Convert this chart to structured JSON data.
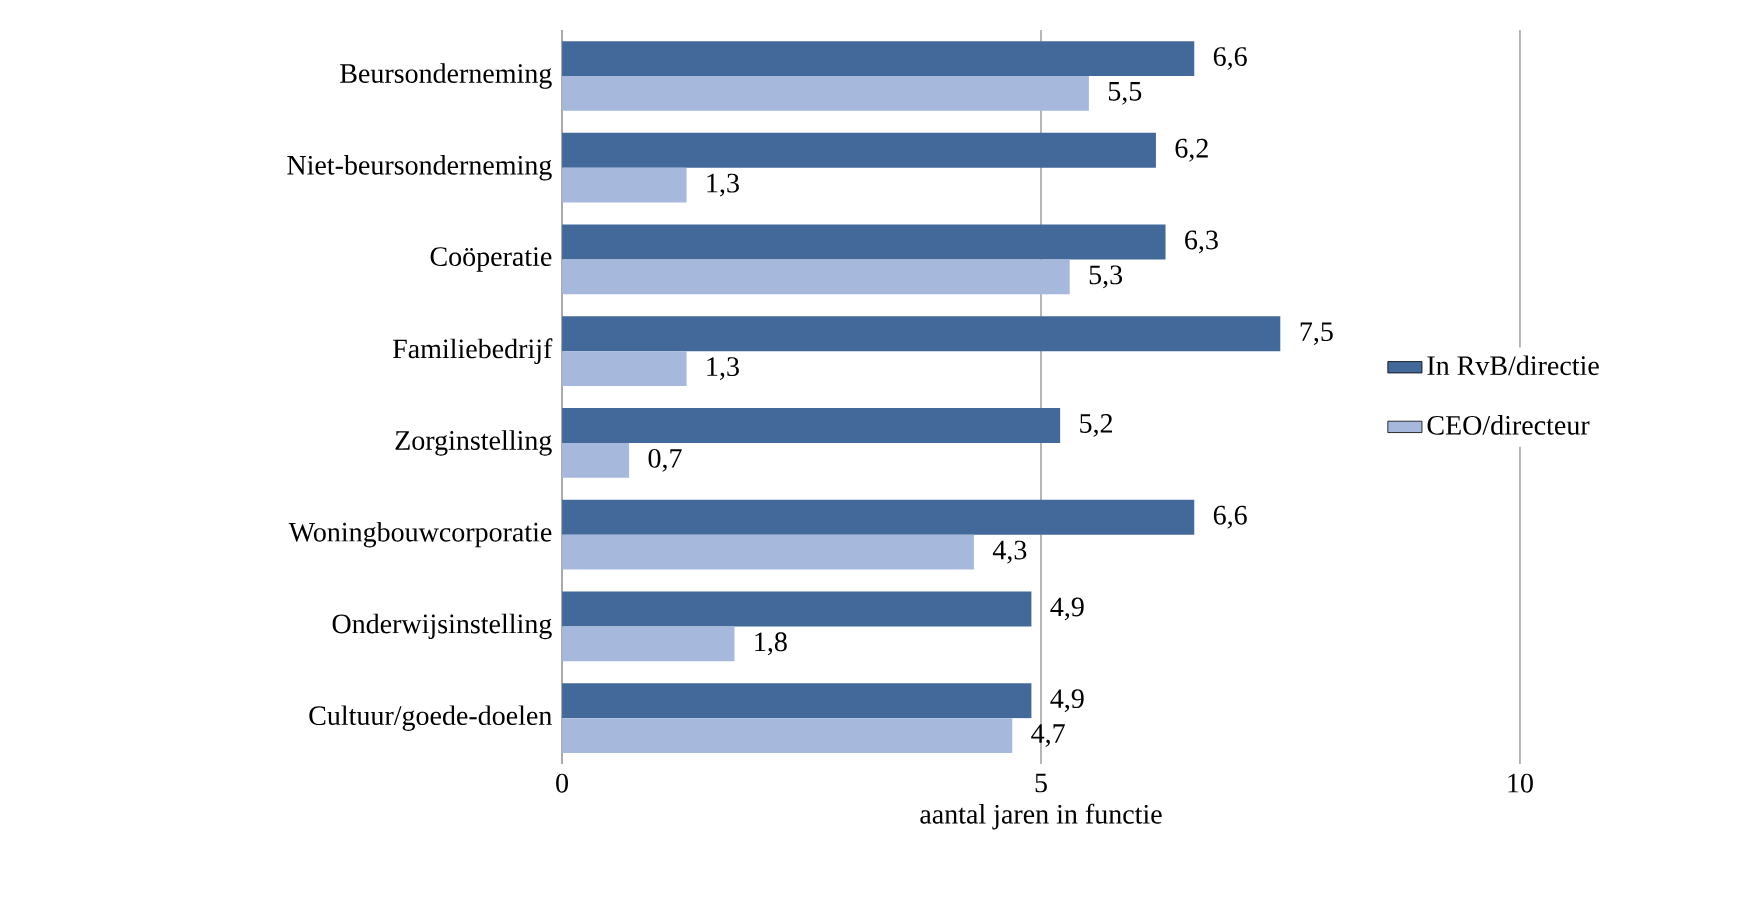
{
  "chart_data": {
    "type": "bar",
    "orientation": "horizontal",
    "xlabel": "aantal jaren in functie",
    "categories": [
      "Beursonderneming",
      "Niet-beursonderneming",
      "Coöperatie",
      "Familiebedrijf",
      "Zorginstelling",
      "Woningbouwcorporatie",
      "Onderwijsinstelling",
      "Cultuur/goede-doelen"
    ],
    "series": [
      {
        "name": "In RvB/directie",
        "color": "#43699b",
        "values": [
          6.6,
          6.2,
          6.3,
          7.5,
          5.2,
          6.6,
          4.9,
          4.9
        ],
        "value_labels": [
          "6,6",
          "6,2",
          "6,3",
          "7,5",
          "5,2",
          "6,6",
          "4,9",
          "4,9"
        ]
      },
      {
        "name": "CEO/directeur",
        "color": "#a6b9dc",
        "values": [
          5.5,
          1.3,
          5.3,
          1.3,
          0.7,
          4.3,
          1.8,
          4.7
        ],
        "value_labels": [
          "5,5",
          "1,3",
          "5,3",
          "1,3",
          "0,7",
          "4,3",
          "1,8",
          "4,7"
        ]
      }
    ],
    "xlim": [
      0,
      10
    ],
    "xticks": [
      0,
      5,
      10
    ],
    "grid": "x",
    "legend": "right"
  }
}
